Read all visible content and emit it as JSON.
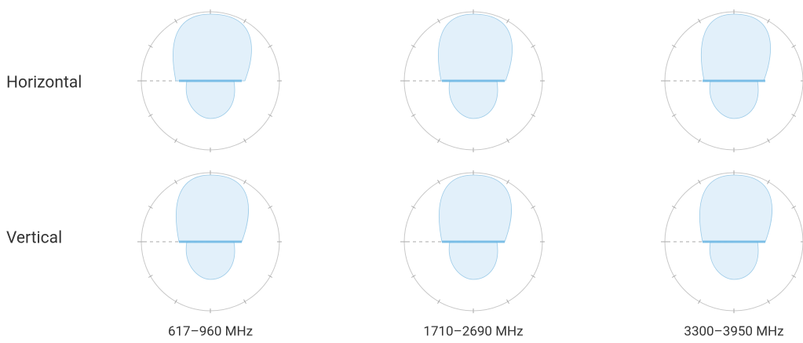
{
  "rows": [
    "Horizontal",
    "Vertical"
  ],
  "columns": [
    "617–960 MHz",
    "1710–2690 MHz",
    "3300–3950 MHz"
  ]
}
